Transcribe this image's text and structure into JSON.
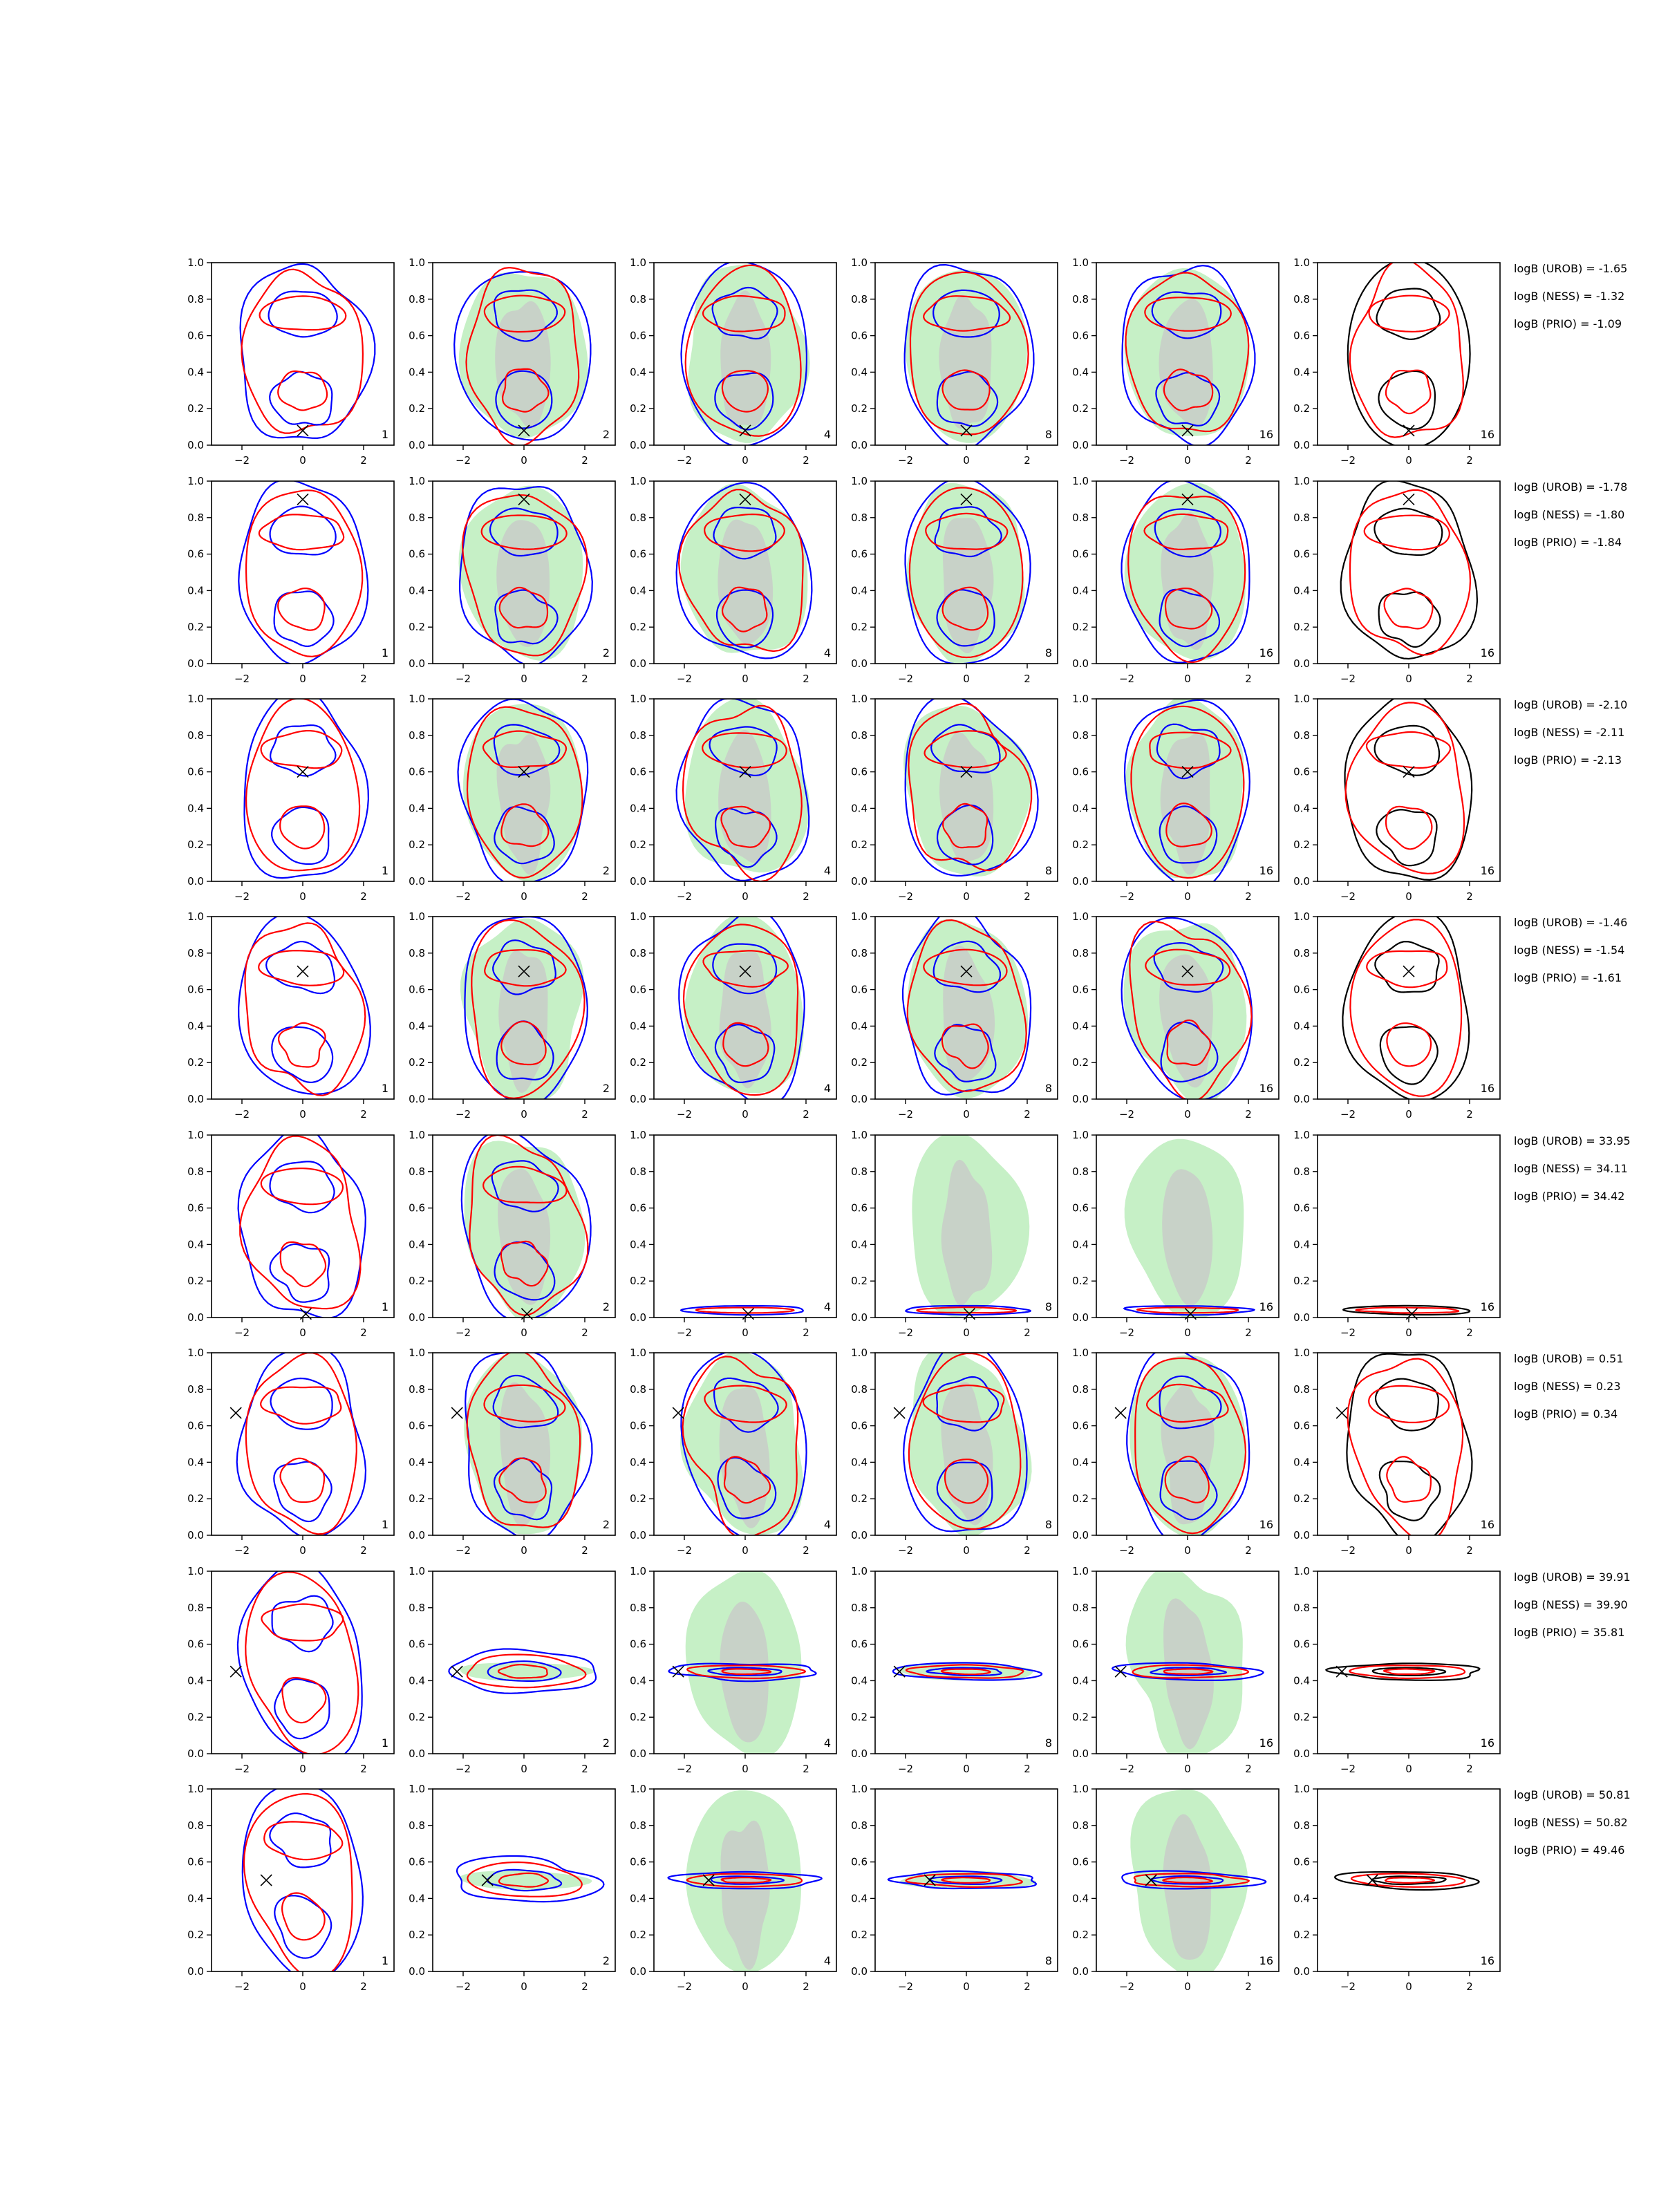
{
  "chart_data": {
    "type": "contour-grid",
    "rows": 8,
    "cols": 6,
    "xlim": [
      -3,
      3
    ],
    "ylim": [
      0,
      1
    ],
    "x_ticks": [
      -2,
      0,
      2
    ],
    "x_tick_labels": [
      "−2",
      "0",
      "2"
    ],
    "y_ticks": [
      0,
      0.2,
      0.4,
      0.6,
      0.8,
      1.0
    ],
    "y_tick_labels": [
      "0.0",
      "0.2",
      "0.4",
      "0.6",
      "0.8",
      "1.0"
    ],
    "column_labels": [
      "1",
      "2",
      "4",
      "8",
      "16",
      "16"
    ],
    "shaded_columns": [
      1,
      2,
      3,
      4
    ],
    "black_contour_column": 5,
    "colors": {
      "red": "#ff0000",
      "blue": "#0000ff",
      "black": "#000000",
      "fill_light": "#c6f0c6",
      "fill_dark": "#c8c8c8"
    },
    "panel_rows": [
      {
        "marker": [
          0.0,
          0.08
        ],
        "mode": "wide",
        "logB": [
          "logB (UROB) = -1.65",
          "logB (NESS) = -1.32",
          "logB (PRIO) = -1.09"
        ]
      },
      {
        "marker": [
          0.0,
          0.9
        ],
        "mode": "wide",
        "logB": [
          "logB (UROB) = -1.78",
          "logB (NESS) = -1.80",
          "logB (PRIO) = -1.84"
        ]
      },
      {
        "marker": [
          0.0,
          0.6
        ],
        "mode": "wide",
        "logB": [
          "logB (UROB) = -2.10",
          "logB (NESS) = -2.11",
          "logB (PRIO) = -2.13"
        ]
      },
      {
        "marker": [
          0.0,
          0.7
        ],
        "mode": "wide",
        "logB": [
          "logB (UROB) = -1.46",
          "logB (NESS) = -1.54",
          "logB (PRIO) = -1.61"
        ]
      },
      {
        "marker": [
          0.1,
          0.02
        ],
        "mode": "low",
        "logB": [
          "logB (UROB) = 33.95",
          "logB (NESS) = 34.11",
          "logB (PRIO) = 34.42"
        ]
      },
      {
        "marker": [
          -2.2,
          0.67
        ],
        "mode": "wide",
        "logB": [
          "logB (UROB) = 0.51",
          "logB (NESS) = 0.23",
          "logB (PRIO) = 0.34"
        ]
      },
      {
        "marker": [
          -2.2,
          0.45
        ],
        "mode": "narrow",
        "logB": [
          "logB (UROB) = 39.91",
          "logB (NESS) = 39.90",
          "logB (PRIO) = 35.81"
        ]
      },
      {
        "marker": [
          -1.2,
          0.5
        ],
        "mode": "narrow",
        "logB": [
          "logB (UROB) = 50.81",
          "logB (NESS) = 50.82",
          "logB (PRIO) = 49.46"
        ]
      }
    ]
  }
}
